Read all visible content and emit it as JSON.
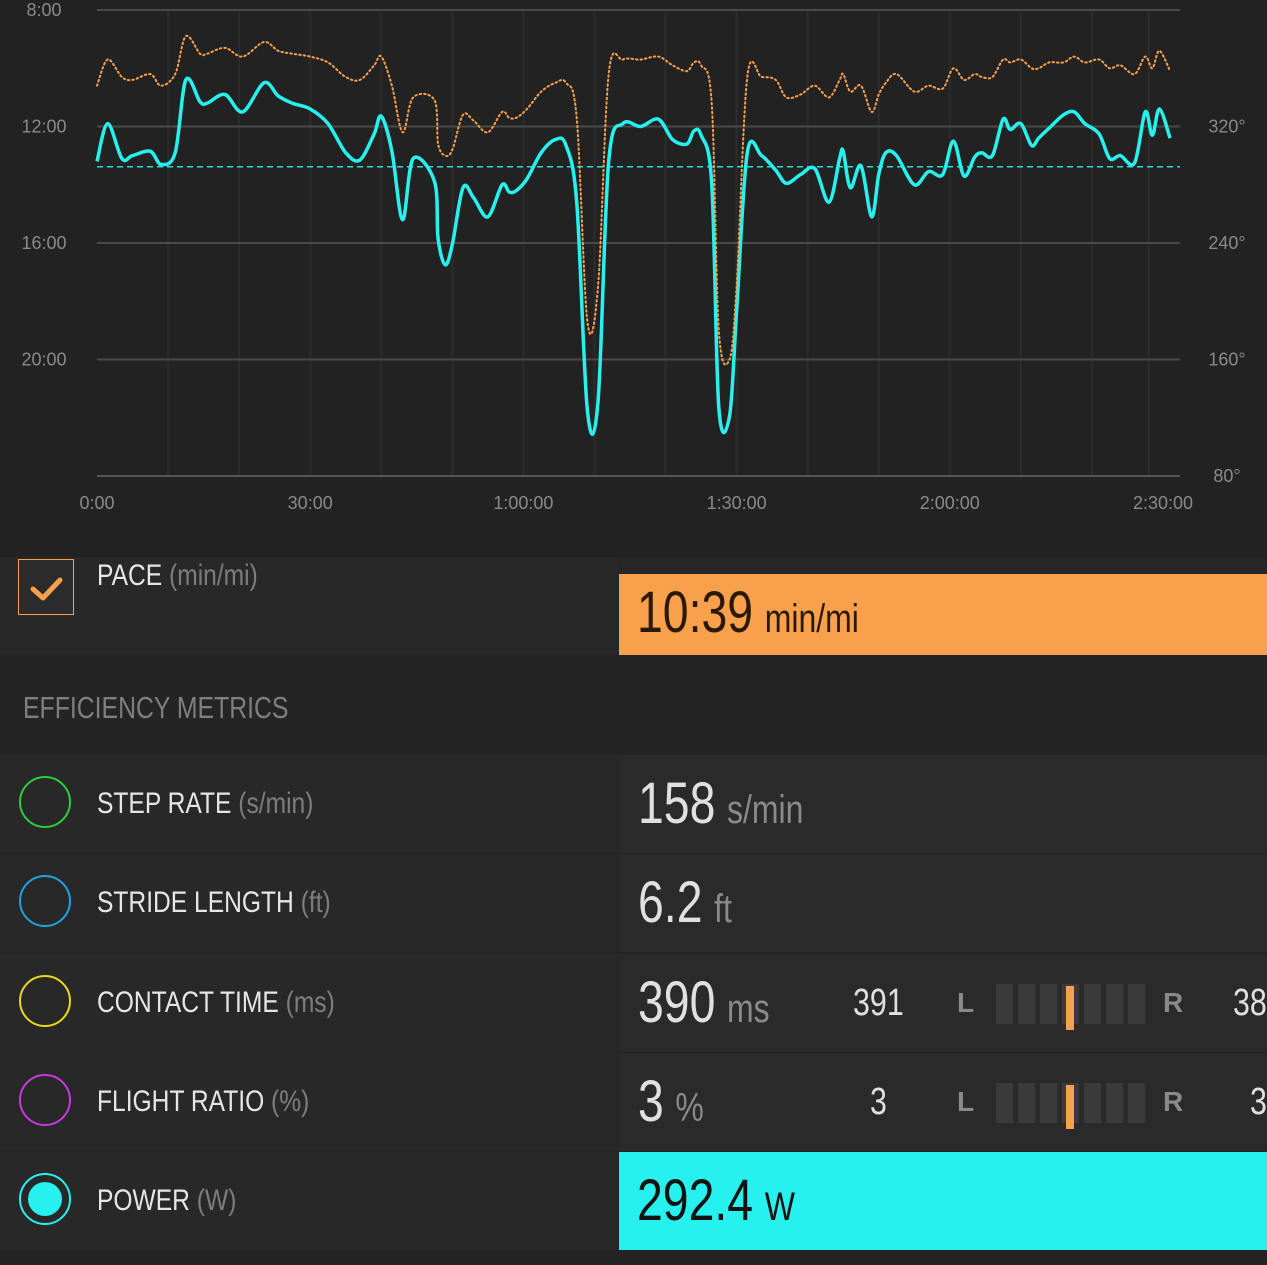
{
  "chart_data": {
    "type": "line",
    "x_ticks": [
      "0:00",
      "30:00",
      "1:00:00",
      "1:30:00",
      "2:00:00",
      "2:30:00"
    ],
    "y_left_ticks": [
      "8:00",
      "12:00",
      "16:00",
      "20:00"
    ],
    "y_right_ticks": [
      "320°",
      "240°",
      "160°",
      "80°"
    ],
    "x_range_minutes": [
      0,
      152
    ],
    "y_left_range_min_per_mi": [
      8,
      24
    ],
    "y_right_range": [
      80,
      400
    ],
    "grid": true,
    "series": [
      {
        "name": "",
        "color": "#27f1ee",
        "style": "solid",
        "x_minutes": [
          0,
          1.5,
          3.5,
          5,
          7.5,
          9,
          11,
          12.5,
          14.5,
          15.5,
          18,
          20.5,
          23.5,
          25.5,
          27.5,
          30,
          32.5,
          35,
          37,
          39,
          40,
          41.5,
          43,
          44.5,
          47.5,
          48,
          49,
          50,
          51.5,
          53,
          55,
          57,
          58,
          59,
          60.5,
          62.5,
          64.5,
          66,
          67.5,
          69,
          70.5,
          72,
          74,
          76.5,
          79,
          81,
          83,
          84,
          85,
          86.5,
          87.5,
          89,
          90,
          91.5,
          93.5,
          95.5,
          97,
          99,
          101,
          103,
          104.5,
          105,
          106,
          107.5,
          109,
          110,
          111,
          112.5,
          115,
          117,
          119,
          120.5,
          122,
          123.5,
          124.5,
          126,
          127.5,
          128.5,
          130,
          131.5,
          132.5,
          134,
          136,
          137.5,
          139,
          141,
          142.5,
          144,
          146,
          147.5,
          148.5,
          149.5,
          151
        ],
        "y": [
          296,
          322,
          298,
          300,
          303,
          294,
          302,
          352,
          337,
          336,
          342,
          330,
          350,
          341,
          336,
          332,
          322,
          302,
          297,
          315,
          327,
          303,
          256,
          298,
          282,
          243,
          225,
          239,
          278,
          271,
          258,
          280,
          275,
          276,
          284,
          302,
          311,
          307,
          268,
          125,
          131,
          296,
          322,
          320,
          325,
          311,
          308,
          317,
          314,
          281,
          127,
          121,
          193,
          302,
          300,
          290,
          281,
          287,
          291,
          268,
          298,
          303,
          278,
          293,
          258,
          287,
          302,
          300,
          280,
          289,
          287,
          310,
          286,
          299,
          302,
          300,
          325,
          318,
          322,
          307,
          312,
          319,
          328,
          330,
          322,
          315,
          298,
          300,
          295,
          330,
          314,
          332,
          312
        ]
      },
      {
        "name": "",
        "color": "#f8a04b",
        "style": "dotted",
        "x_minutes": [
          0,
          1.5,
          3.5,
          5,
          7.5,
          9,
          11,
          12.5,
          14.5,
          15.5,
          18,
          20.5,
          23.5,
          25.5,
          27.5,
          30,
          32.5,
          35,
          37,
          39,
          40,
          41.5,
          43,
          44.5,
          47.5,
          48,
          49,
          50,
          51.5,
          53,
          55,
          57,
          58,
          59,
          60.5,
          62.5,
          64.5,
          66,
          67.5,
          69,
          70.5,
          72,
          74,
          76.5,
          79,
          81,
          83,
          84,
          85,
          86.5,
          87.5,
          89,
          90,
          91.5,
          93.5,
          95.5,
          97,
          99,
          101,
          103,
          104.5,
          105,
          106,
          107.5,
          109,
          110,
          111,
          112.5,
          115,
          117,
          119,
          120.5,
          122,
          123.5,
          124.5,
          126,
          127.5,
          128.5,
          130,
          131.5,
          132.5,
          134,
          136,
          137.5,
          139,
          141,
          142.5,
          144,
          146,
          147.5,
          148.5,
          149.5,
          151
        ],
        "y_min_per_mi": [
          10.6,
          9.7,
          10.3,
          10.4,
          10.2,
          10.6,
          10.2,
          8.9,
          9.5,
          9.5,
          9.3,
          9.6,
          9.1,
          9.4,
          9.5,
          9.6,
          9.8,
          10.3,
          10.4,
          9.9,
          9.6,
          10.6,
          12.2,
          11.0,
          11.1,
          12.6,
          13.0,
          12.8,
          11.6,
          11.8,
          12.2,
          11.5,
          11.7,
          11.7,
          11.4,
          10.8,
          10.5,
          10.5,
          11.7,
          18.7,
          17.5,
          10.2,
          9.7,
          9.7,
          9.6,
          9.9,
          10.1,
          9.8,
          9.9,
          11.2,
          19.0,
          20.0,
          17.5,
          10.3,
          10.3,
          10.4,
          11.0,
          10.9,
          10.6,
          11.0,
          10.4,
          10.2,
          10.8,
          10.6,
          11.5,
          10.9,
          10.5,
          10.2,
          10.8,
          10.6,
          10.7,
          10.0,
          10.4,
          10.2,
          10.3,
          10.3,
          9.7,
          9.8,
          9.7,
          10.0,
          10.0,
          9.8,
          9.8,
          9.6,
          9.8,
          9.7,
          10.0,
          9.9,
          10.2,
          9.6,
          10.0,
          9.4,
          10.1
        ]
      },
      {
        "name": "",
        "color": "#27f1ee",
        "style": "dashed",
        "constant_y": 292.4
      }
    ]
  },
  "metrics": {
    "pace": {
      "label": "PACE",
      "unit_label": "(min/mi)",
      "value": "10:39",
      "unit": "min/mi",
      "checked": true,
      "color": "#f8a04b"
    },
    "section_title": "EFFICIENCY METRICS",
    "step_rate": {
      "label": "STEP RATE",
      "unit_label": "(s/min)",
      "value": "158",
      "unit": "s/min",
      "ring_color": "#2ecc40"
    },
    "stride_length": {
      "label": "STRIDE LENGTH",
      "unit_label": "(ft)",
      "value": "6.2",
      "unit": "ft",
      "ring_color": "#1fa3e0"
    },
    "contact_time": {
      "label": "CONTACT TIME",
      "unit_label": "(ms)",
      "value": "390",
      "unit": "ms",
      "ring_color": "#e8d81b",
      "left": "391",
      "L": "L",
      "R": "R",
      "right": "38"
    },
    "flight_ratio": {
      "label": "FLIGHT RATIO",
      "unit_label": "(%)",
      "value": "3",
      "unit": "%",
      "ring_color": "#c63be0",
      "left": "3",
      "L": "L",
      "R": "R",
      "right": "3"
    },
    "power": {
      "label": "POWER",
      "unit_label": "(W)",
      "value": "292.4",
      "unit": "W",
      "selected": true,
      "color": "#27f1ee"
    }
  }
}
